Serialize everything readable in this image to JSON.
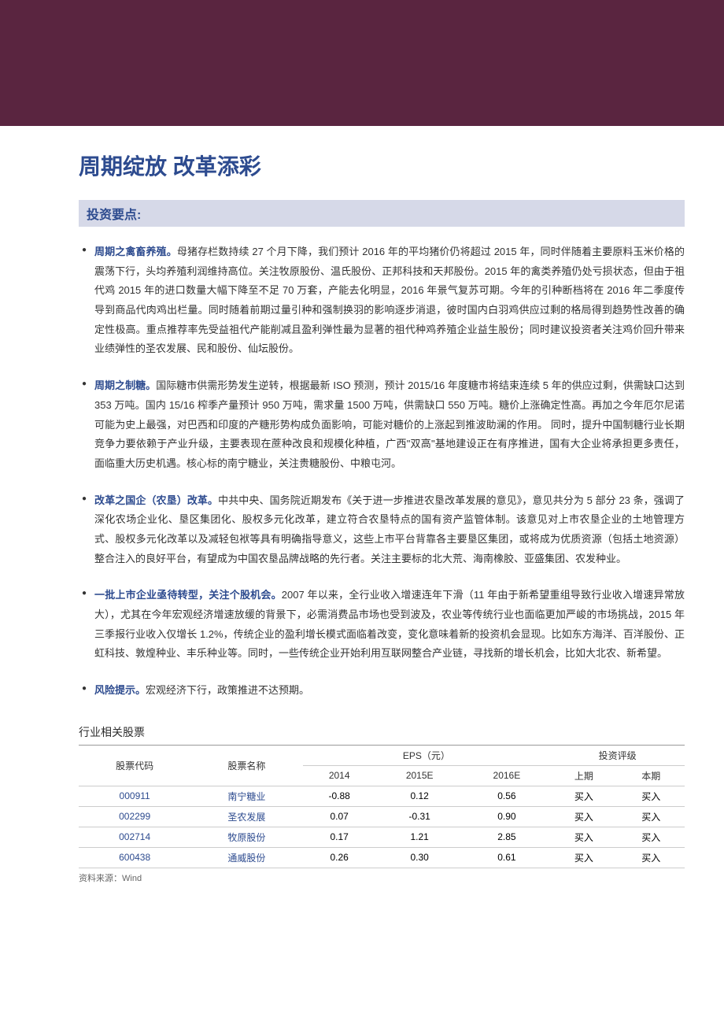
{
  "colors": {
    "header_band": "#5a2540",
    "section_bg": "#d6d9e8",
    "title_color": "#2d4b8f",
    "text_color": "#333333",
    "link_color": "#2d4b8f",
    "border_color": "#cccccc"
  },
  "typography": {
    "title_fontsize": 28,
    "section_fontsize": 16,
    "body_fontsize": 13,
    "table_fontsize": 12
  },
  "main_title": "周期绽放 改革添彩",
  "section_title": "投资要点:",
  "bullets": [
    {
      "title": "周期之禽畜养殖。",
      "text": "母猪存栏数持续 27 个月下降，我们预计 2016 年的平均猪价仍将超过 2015 年，同时伴随着主要原料玉米价格的震荡下行，头均养殖利润维持高位。关注牧原股份、温氏股份、正邦科技和天邦股份。2015 年的禽类养殖仍处亏损状态，但由于祖代鸡 2015 年的进口数量大幅下降至不足 70 万套，产能去化明显，2016 年景气复苏可期。今年的引种断档将在 2016 年二季度传导到商品代肉鸡出栏量。同时随着前期过量引种和强制换羽的影响逐步消退，彼时国内白羽鸡供应过剩的格局得到趋势性改善的确定性极高。重点推荐率先受益祖代产能削减且盈利弹性最为显著的祖代种鸡养殖企业益生股份；同时建议投资者关注鸡价回升带来业绩弹性的圣农发展、民和股份、仙坛股份。"
    },
    {
      "title": "周期之制糖。",
      "text": "国际糖市供需形势发生逆转，根据最新 ISO 预测，预计 2015/16 年度糖市将结束连续 5 年的供应过剩，供需缺口达到 353 万吨。国内 15/16 榨季产量预计 950 万吨，需求量 1500 万吨，供需缺口 550 万吨。糖价上涨确定性高。再加之今年厄尔尼诺可能为史上最强，对巴西和印度的产糖形势构成负面影响，可能对糖价的上涨起到推波助澜的作用。 同时，提升中国制糖行业长期竞争力要依赖于产业升级，主要表现在蔗种改良和规模化种植，广西\"双高\"基地建设正在有序推进，国有大企业将承担更多责任，面临重大历史机遇。核心标的南宁糖业，关注贵糖股份、中粮屯河。"
    },
    {
      "title": "改革之国企（农垦）改革。",
      "text": "中共中央、国务院近期发布《关于进一步推进农垦改革发展的意见》，意见共分为 5 部分 23 条，强调了深化农场企业化、垦区集团化、股权多元化改革，建立符合农垦特点的国有资产监管体制。该意见对上市农垦企业的土地管理方式、股权多元化改革以及减轻包袱等具有明确指导意义，这些上市平台背靠各主要垦区集团，或将成为优质资源（包括土地资源）整合注入的良好平台，有望成为中国农垦品牌战略的先行者。关注主要标的北大荒、海南橡胶、亚盛集团、农发种业。"
    },
    {
      "title": "一批上市企业亟待转型，关注个股机会。",
      "text": "2007 年以来，全行业收入增速连年下滑（11 年由于新希望重组导致行业收入增速异常放大），尤其在今年宏观经济增速放缓的背景下，必需消费品市场也受到波及，农业等传统行业也面临更加严峻的市场挑战，2015 年三季报行业收入仅增长 1.2%，传统企业的盈利增长模式面临着改变，变化意味着新的投资机会显现。比如东方海洋、百洋股份、正虹科技、敦煌种业、丰乐种业等。同时，一些传统企业开始利用互联网整合产业链，寻找新的增长机会，比如大北农、新希望。"
    },
    {
      "title": "风险提示。",
      "text": "宏观经济下行，政策推进不达预期。"
    }
  ],
  "table_title": "行业相关股票",
  "table": {
    "headers": {
      "code": "股票代码",
      "name": "股票名称",
      "eps_group": "EPS（元）",
      "rating_group": "投资评级",
      "eps_2014": "2014",
      "eps_2015e": "2015E",
      "eps_2016e": "2016E",
      "prev": "上期",
      "curr": "本期"
    },
    "rows": [
      {
        "code": "000911",
        "name": "南宁糖业",
        "eps2014": "-0.88",
        "eps2015e": "0.12",
        "eps2016e": "0.56",
        "prev": "买入",
        "curr": "买入"
      },
      {
        "code": "002299",
        "name": "圣农发展",
        "eps2014": "0.07",
        "eps2015e": "-0.31",
        "eps2016e": "0.90",
        "prev": "买入",
        "curr": "买入"
      },
      {
        "code": "002714",
        "name": "牧原股份",
        "eps2014": "0.17",
        "eps2015e": "1.21",
        "eps2016e": "2.85",
        "prev": "买入",
        "curr": "买入"
      },
      {
        "code": "600438",
        "name": "通威股份",
        "eps2014": "0.26",
        "eps2015e": "0.30",
        "eps2016e": "0.61",
        "prev": "买入",
        "curr": "买入"
      }
    ]
  },
  "table_note": "资料来源：Wind"
}
